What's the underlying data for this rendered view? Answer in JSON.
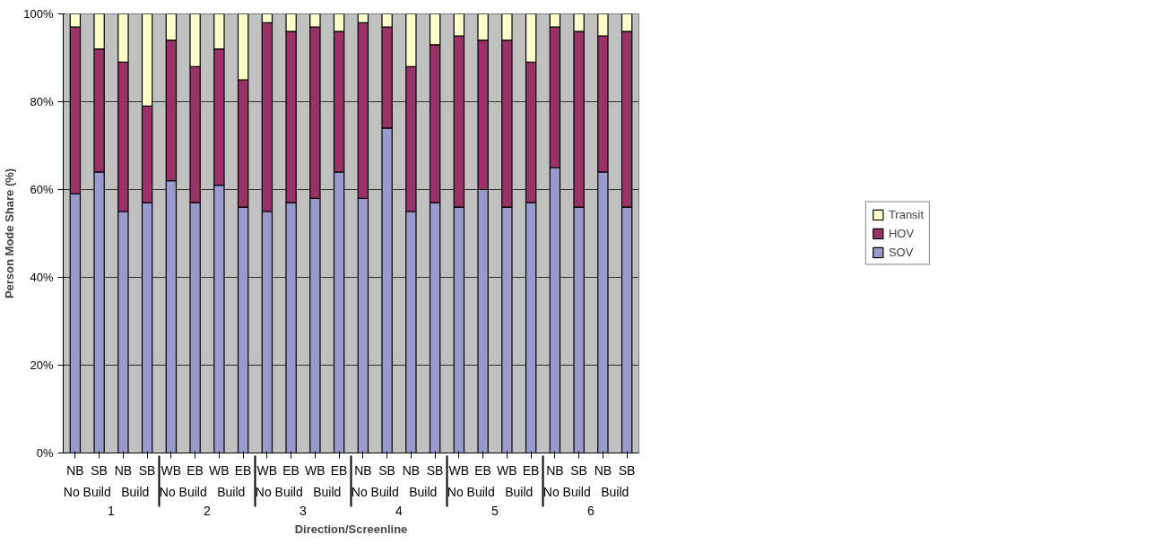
{
  "chart_data": {
    "type": "bar",
    "stacked": true,
    "xlabel": "Direction/Screenline",
    "ylabel": "Person Mode Share (%)",
    "categories": [
      "NB",
      "SB",
      "NB",
      "SB",
      "WB",
      "EB",
      "WB",
      "EB",
      "WB",
      "EB",
      "WB",
      "EB",
      "NB",
      "SB",
      "NB",
      "SB",
      "WB",
      "EB",
      "WB",
      "EB",
      "NB",
      "SB",
      "NB",
      "SB"
    ],
    "series": [
      {
        "name": "SOV",
        "color": "#9999cc",
        "values": [
          59,
          64,
          55,
          57,
          62,
          57,
          61,
          56,
          55,
          57,
          58,
          64,
          58,
          74,
          55,
          57,
          56,
          60,
          56,
          57,
          65,
          56,
          64,
          56
        ]
      },
      {
        "name": "HOV",
        "color": "#993366",
        "values": [
          38,
          28,
          34,
          22,
          32,
          31,
          31,
          29,
          43,
          39,
          39,
          32,
          40,
          23,
          33,
          36,
          39,
          34,
          38,
          32,
          32,
          40,
          31,
          40
        ]
      },
      {
        "name": "Transit",
        "color": "#ffffcc",
        "values": [
          3,
          8,
          11,
          21,
          6,
          12,
          8,
          15,
          2,
          4,
          3,
          4,
          2,
          3,
          12,
          7,
          5,
          6,
          6,
          11,
          3,
          4,
          5,
          4
        ]
      }
    ],
    "annotations": [
      "No Build",
      "Build",
      "No Build",
      "Build",
      "No Build",
      "Build",
      "No Build",
      "Build",
      "No Build",
      "Build",
      "No Build",
      "Build",
      "1",
      "2",
      "3",
      "4",
      "5",
      "6"
    ],
    "ylim": [
      0,
      100
    ],
    "yticks": [
      {
        "value": 0,
        "label": "0%"
      },
      {
        "value": 20,
        "label": "20%"
      },
      {
        "value": 40,
        "label": "40%"
      },
      {
        "value": 60,
        "label": "60%"
      },
      {
        "value": 80,
        "label": "80%"
      },
      {
        "value": 100,
        "label": "100%"
      }
    ],
    "grid": "y",
    "legend": "right"
  }
}
